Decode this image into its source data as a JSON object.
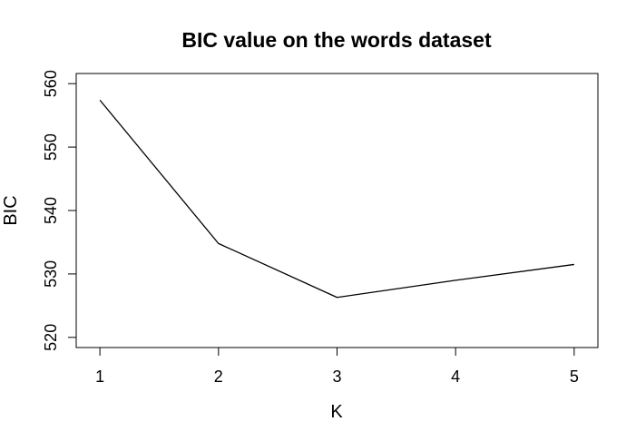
{
  "chart_data": {
    "type": "line",
    "title": "BIC value on the words dataset",
    "xlabel": "K",
    "ylabel": "BIC",
    "x": [
      1,
      2,
      3,
      4,
      5
    ],
    "series": [
      {
        "name": "BIC",
        "values": [
          557.4,
          534.8,
          526.3,
          529.0,
          531.5
        ]
      }
    ],
    "xlim": [
      0.8,
      5.2
    ],
    "ylim": [
      518.4,
      561.6
    ],
    "xticks": [
      1,
      2,
      3,
      4,
      5
    ],
    "yticks": [
      520,
      530,
      540,
      550,
      560
    ],
    "grid": false,
    "legend": "none",
    "line_color": "#000000"
  }
}
